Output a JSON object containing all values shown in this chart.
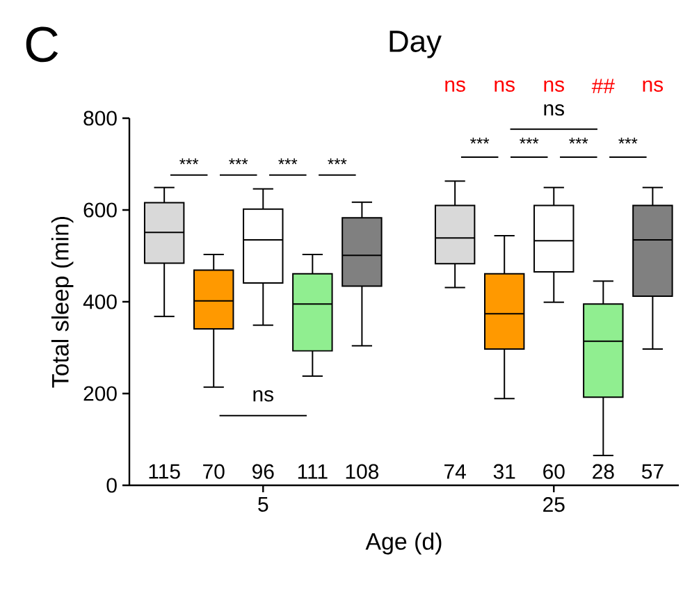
{
  "chart_data": {
    "type": "box",
    "title": "Day",
    "xlabel": "Age (d)",
    "ylabel": "Total sleep (min)",
    "categories": [
      "5",
      "25"
    ],
    "ylim": [
      0,
      800
    ],
    "yticks": [
      0,
      200,
      400,
      600,
      800
    ],
    "series": [
      {
        "color": "#d9d9d9",
        "boxes": [
          {
            "low": 368,
            "q1": 484,
            "median": 551,
            "q3": 616,
            "high": 649
          },
          {
            "low": 431,
            "q1": 483,
            "median": 539,
            "q3": 610,
            "high": 663
          }
        ]
      },
      {
        "color": "#ff9900",
        "boxes": [
          {
            "low": 214,
            "q1": 341,
            "median": 402,
            "q3": 469,
            "high": 503
          },
          {
            "low": 189,
            "q1": 297,
            "median": 374,
            "q3": 461,
            "high": 544
          }
        ]
      },
      {
        "color": "#ffffff",
        "boxes": [
          {
            "low": 349,
            "q1": 441,
            "median": 535,
            "q3": 602,
            "high": 646
          },
          {
            "low": 399,
            "q1": 465,
            "median": 533,
            "q3": 610,
            "high": 649
          }
        ]
      },
      {
        "color": "#90ee90",
        "boxes": [
          {
            "low": 238,
            "q1": 293,
            "median": 395,
            "q3": 461,
            "high": 503
          },
          {
            "low": 65,
            "q1": 192,
            "median": 314,
            "q3": 395,
            "high": 445
          }
        ]
      },
      {
        "color": "#808080",
        "boxes": [
          {
            "low": 304,
            "q1": 434,
            "median": 501,
            "q3": 583,
            "high": 617
          },
          {
            "low": 297,
            "q1": 412,
            "median": 535,
            "q3": 610,
            "high": 649
          }
        ]
      }
    ],
    "annotations": [
      "C",
      "ns",
      "ns",
      "ns",
      "##",
      "ns",
      "***",
      "***",
      "***",
      "***",
      "ns",
      "115",
      "70",
      "96",
      "111",
      "108",
      "***",
      "***",
      "***",
      "***",
      "ns",
      "74",
      "31",
      "60",
      "28",
      "57"
    ]
  }
}
